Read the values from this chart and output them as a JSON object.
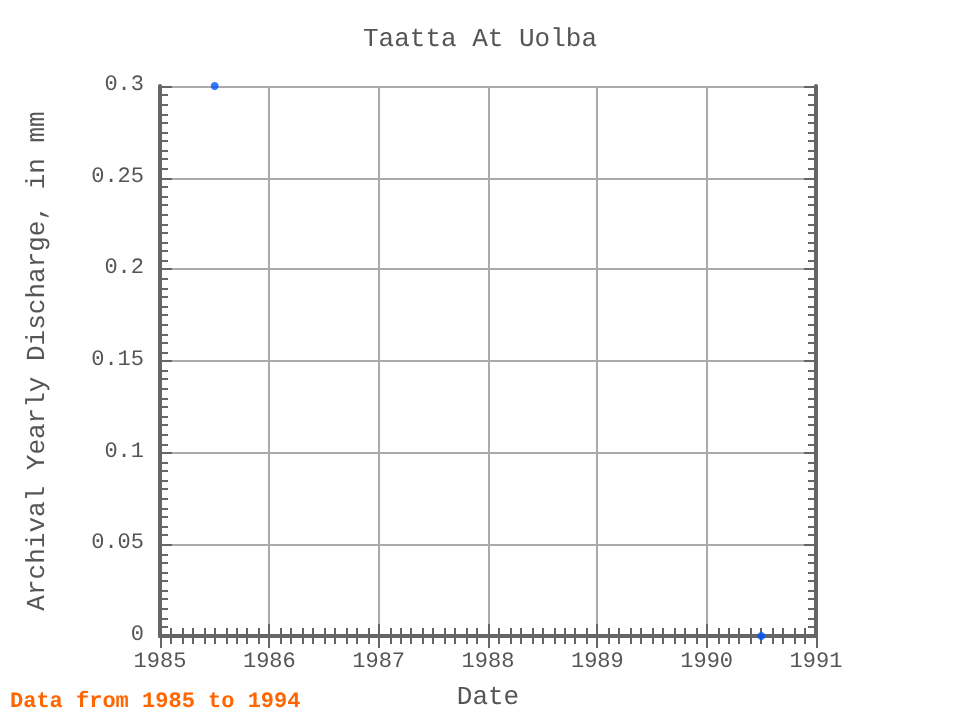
{
  "chart_data": {
    "type": "scatter",
    "title": "Taatta At Uolba",
    "xlabel": "Date",
    "ylabel": "Archival Yearly Discharge, in mm",
    "x": [
      1985.5,
      1990.5
    ],
    "values": [
      0.3,
      0
    ],
    "color": "#0055ff",
    "marker": "circle",
    "xlim": [
      1985,
      1991
    ],
    "xticks": [
      1985,
      1986,
      1987,
      1988,
      1989,
      1990,
      1991
    ],
    "ylim": [
      0,
      0.3
    ],
    "yticks": [
      0,
      0.05,
      0.1,
      0.15,
      0.2,
      0.25,
      0.3
    ],
    "grid": true,
    "annotations": [
      "Data from 1985 to 1994"
    ]
  }
}
